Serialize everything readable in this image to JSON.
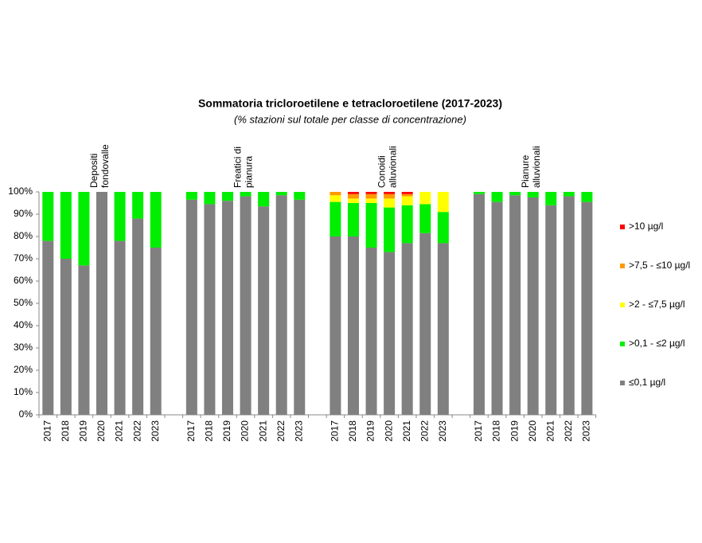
{
  "chart_data": {
    "type": "bar",
    "stacked": true,
    "title": "Sommatoria tricloroetilene e tetracloroetilene (2017-2023)",
    "subtitle": "(% stazioni sul totale per classe di concentrazione)",
    "categories": [
      "2017",
      "2018",
      "2019",
      "2020",
      "2021",
      "2022",
      "2023",
      null,
      "2017",
      "2018",
      "2019",
      "2020",
      "2021",
      "2022",
      "2023",
      null,
      "2017",
      "2018",
      "2019",
      "2020",
      "2021",
      "2022",
      "2023",
      null,
      "2017",
      "2018",
      "2019",
      "2020",
      "2021",
      "2022",
      "2023"
    ],
    "groups": [
      [
        "Depositi",
        "fondovalle"
      ],
      [
        "Freatici di",
        "pianura"
      ],
      [
        "Conoidi",
        "alluvionali"
      ],
      [
        "Pianure",
        "alluvionali"
      ]
    ],
    "series": [
      {
        "name": "≤0,1 µg/l",
        "color": "#808080",
        "values": [
          78,
          70,
          67,
          100,
          78,
          88,
          75,
          null,
          96.5,
          94.5,
          96,
          98,
          93.5,
          98.5,
          96.5,
          null,
          80,
          80,
          75,
          73,
          77,
          81.5,
          77,
          null,
          99,
          95.5,
          98.5,
          97.5,
          94,
          98,
          95.5
        ]
      },
      {
        "name": ">0,1 - ≤2 µg/l",
        "color": "#00ee00",
        "values": [
          22,
          30,
          33,
          0,
          22,
          12,
          25,
          null,
          3.5,
          5.5,
          4,
          2,
          6.5,
          1.5,
          3.5,
          null,
          15.5,
          15,
          20,
          20,
          17,
          13,
          14,
          null,
          1,
          4.5,
          1.5,
          2.5,
          6,
          2,
          4.5
        ]
      },
      {
        "name": ">2 - ≤7,5 µg/l",
        "color": "#ffff00",
        "values": [
          0,
          0,
          0,
          0,
          0,
          0,
          0,
          null,
          0,
          0,
          0,
          0,
          0,
          0,
          0,
          null,
          3,
          2,
          2,
          4,
          4,
          5.5,
          9,
          null,
          0,
          0,
          0,
          0,
          0,
          0,
          0
        ]
      },
      {
        "name": ">7,5 - ≤10 µg/l",
        "color": "#ff9900",
        "values": [
          0,
          0,
          0,
          0,
          0,
          0,
          0,
          null,
          0,
          0,
          0,
          0,
          0,
          0,
          0,
          null,
          1.5,
          2,
          2,
          2,
          1,
          0,
          0,
          null,
          0,
          0,
          0,
          0,
          0,
          0,
          0
        ]
      },
      {
        "name": ">10 µg/l",
        "color": "#ff0000",
        "values": [
          0,
          0,
          0,
          0,
          0,
          0,
          0,
          null,
          0,
          0,
          0,
          0,
          0,
          0,
          0,
          null,
          0,
          1,
          1,
          1,
          1,
          0,
          0,
          null,
          0,
          0,
          0,
          0,
          0,
          0,
          0
        ]
      }
    ],
    "ylim": [
      0,
      100
    ],
    "yticks": [
      {
        "value": 0,
        "label": "0%"
      },
      {
        "value": 10,
        "label": "10%"
      },
      {
        "value": 20,
        "label": "20%"
      },
      {
        "value": 30,
        "label": "30%"
      },
      {
        "value": 40,
        "label": "40%"
      },
      {
        "value": 50,
        "label": "50%"
      },
      {
        "value": 60,
        "label": "60%"
      },
      {
        "value": 70,
        "label": "70%"
      },
      {
        "value": 80,
        "label": "80%"
      },
      {
        "value": 90,
        "label": "90%"
      },
      {
        "value": 100,
        "label": "100%"
      }
    ],
    "legend": "right"
  }
}
